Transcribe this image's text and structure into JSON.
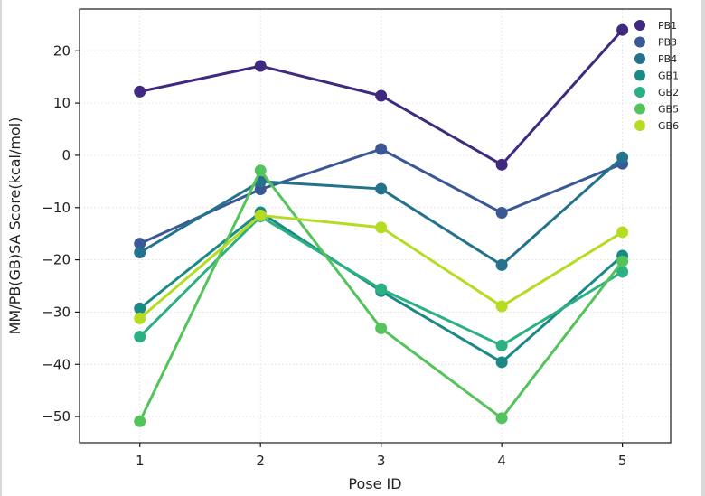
{
  "chart_data": {
    "type": "line",
    "xlabel": "Pose ID",
    "ylabel": "MM/PB(GB)SA Score(kcal/mol)",
    "x": [
      1,
      2,
      3,
      4,
      5
    ],
    "xticks": [
      1,
      2,
      3,
      4,
      5
    ],
    "xlim": [
      0.5,
      5.4
    ],
    "yticks": [
      -50,
      -40,
      -30,
      -20,
      -10,
      0,
      10,
      20
    ],
    "ylim": [
      -55,
      28
    ],
    "grid": true,
    "legend_position": "top-right",
    "series": [
      {
        "name": "PB1",
        "color": "#3f2a80",
        "values": [
          12.2,
          17.1,
          11.4,
          -1.8,
          24.0
        ]
      },
      {
        "name": "PB3",
        "color": "#3b5896",
        "values": [
          -16.9,
          -6.5,
          1.2,
          -11.0,
          -1.6
        ]
      },
      {
        "name": "PB4",
        "color": "#24728c",
        "values": [
          -18.6,
          -5.0,
          -6.4,
          -21.0,
          -0.4
        ]
      },
      {
        "name": "GB1",
        "color": "#1b8a87",
        "values": [
          -29.3,
          -10.9,
          -26.0,
          -39.6,
          -19.2
        ]
      },
      {
        "name": "GB2",
        "color": "#2bb082",
        "values": [
          -34.7,
          -11.7,
          -25.6,
          -36.4,
          -22.3
        ]
      },
      {
        "name": "GB5",
        "color": "#55c35c",
        "values": [
          -50.9,
          -2.9,
          -33.1,
          -50.3,
          -20.3
        ]
      },
      {
        "name": "GB6",
        "color": "#b5dc22",
        "values": [
          -31.2,
          -11.5,
          -13.8,
          -28.9,
          -14.7
        ]
      }
    ]
  }
}
